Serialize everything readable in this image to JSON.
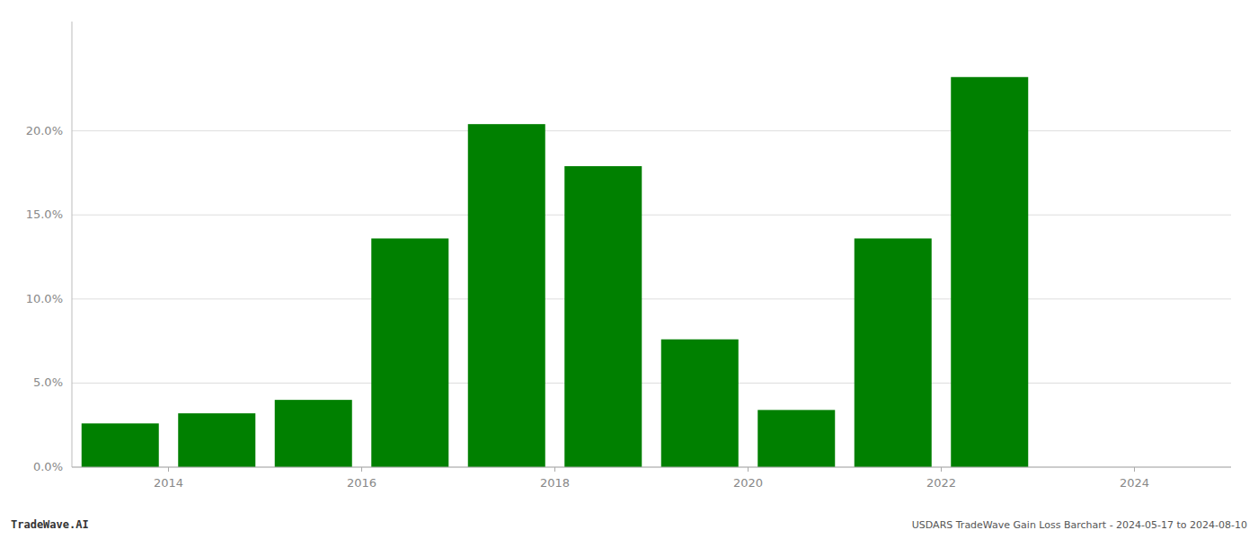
{
  "chart_data": {
    "type": "bar",
    "x": [
      2013.5,
      2014.5,
      2015.5,
      2016.5,
      2017.5,
      2018.5,
      2019.5,
      2020.5,
      2021.5,
      2022.5
    ],
    "values": [
      0.026,
      0.032,
      0.04,
      0.136,
      0.204,
      0.179,
      0.076,
      0.034,
      0.136,
      0.232
    ],
    "color": "#008000",
    "xlim": [
      2013.0,
      2025.0
    ],
    "xticks": [
      2014,
      2016,
      2018,
      2020,
      2022,
      2024
    ],
    "ylim": [
      0,
      0.265
    ],
    "yticks": [
      {
        "value": 0.0,
        "label": "0.0%"
      },
      {
        "value": 0.05,
        "label": "5.0%"
      },
      {
        "value": 0.1,
        "label": "10.0%"
      },
      {
        "value": 0.15,
        "label": "15.0%"
      },
      {
        "value": 0.2,
        "label": "20.0%"
      }
    ],
    "grid": true,
    "annotations": [
      "TradeWave.AI",
      "USDARS TradeWave Gain Loss Barchart - 2024-05-17 to 2024-08-10"
    ]
  }
}
